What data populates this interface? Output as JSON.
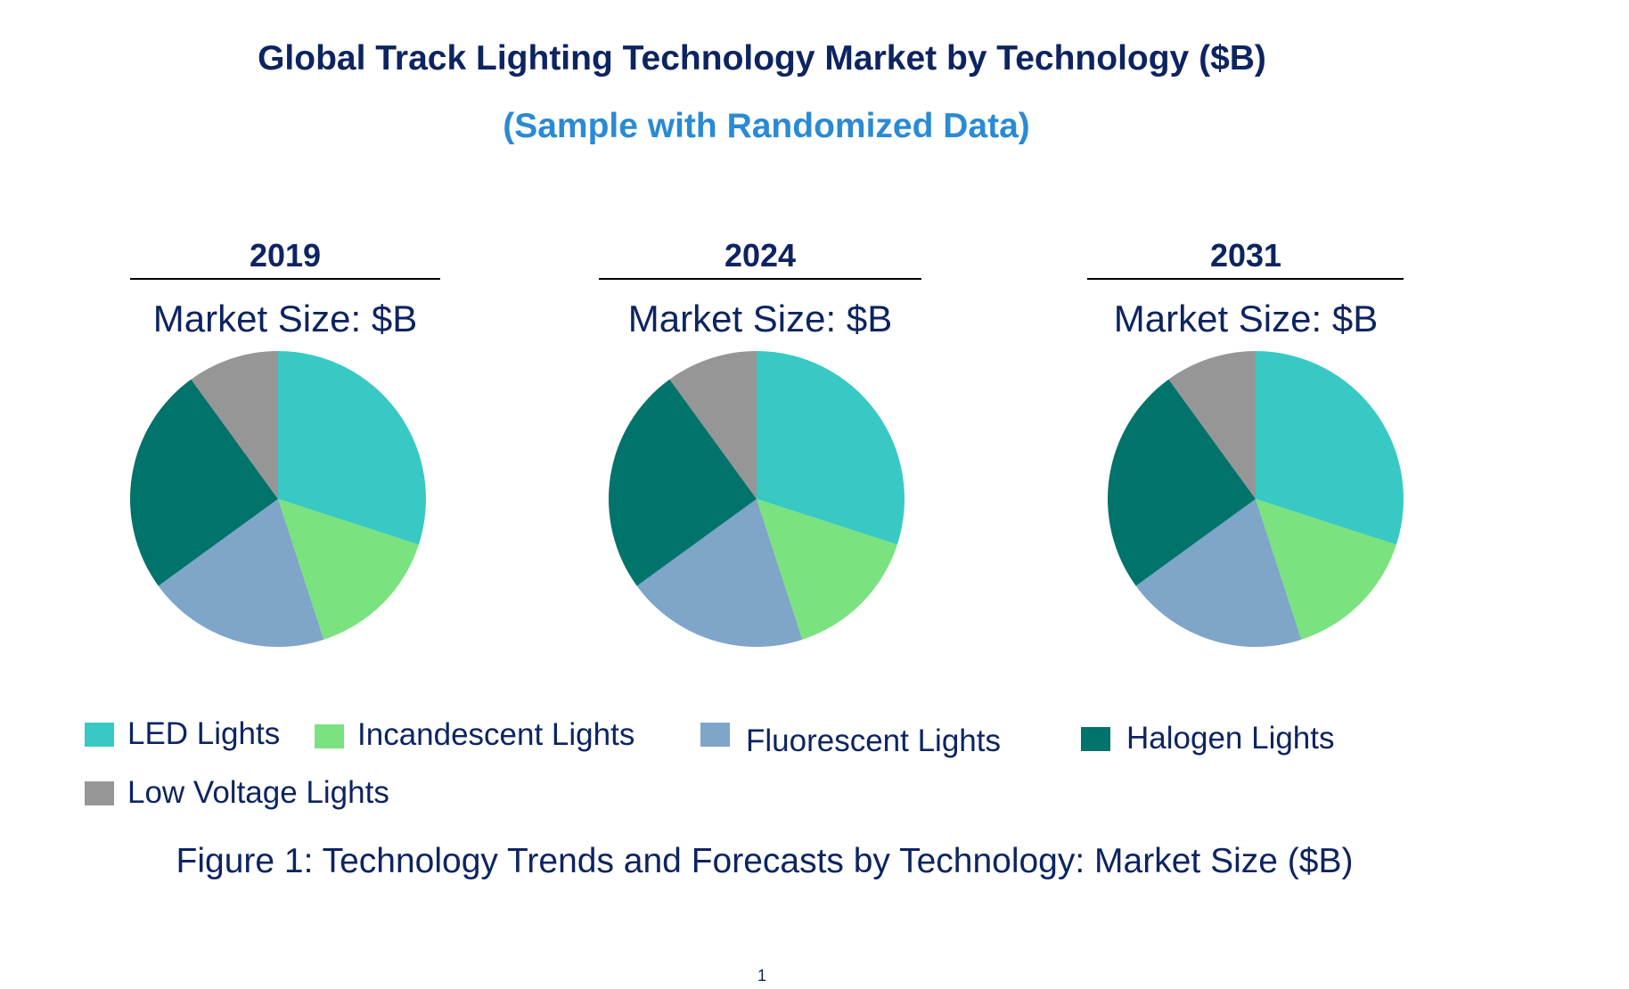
{
  "header": {
    "title": "Global Track Lighting Technology Market by Technology ($B)",
    "subtitle": "(Sample with Randomized Data)"
  },
  "colors": {
    "title": "#0d2461",
    "subtitle": "#2a8ad4",
    "text": "#0d2461",
    "divider": "#000000"
  },
  "chart_data": [
    {
      "type": "pie",
      "title": "2019",
      "subtitle": "Market Size: $B",
      "categories": [
        "LED Lights",
        "Incandescent Lights",
        "Fluorescent Lights",
        "Halogen Lights",
        "Low Voltage Lights"
      ],
      "values": [
        30,
        15,
        20,
        25,
        10
      ],
      "colors": [
        "#38c9c4",
        "#7ae27e",
        "#7fa5c9",
        "#00736b",
        "#969696"
      ]
    },
    {
      "type": "pie",
      "title": "2024",
      "subtitle": "Market Size: $B",
      "categories": [
        "LED Lights",
        "Incandescent Lights",
        "Fluorescent Lights",
        "Halogen Lights",
        "Low Voltage Lights"
      ],
      "values": [
        30,
        15,
        20,
        25,
        10
      ],
      "colors": [
        "#38c9c4",
        "#7ae27e",
        "#7fa5c9",
        "#00736b",
        "#969696"
      ]
    },
    {
      "type": "pie",
      "title": "2031",
      "subtitle": "Market Size: $B",
      "categories": [
        "LED Lights",
        "Incandescent Lights",
        "Fluorescent Lights",
        "Halogen Lights",
        "Low Voltage Lights"
      ],
      "values": [
        30,
        15,
        20,
        25,
        10
      ],
      "colors": [
        "#38c9c4",
        "#7ae27e",
        "#7fa5c9",
        "#00736b",
        "#969696"
      ]
    }
  ],
  "legend": {
    "items": [
      {
        "label": "LED Lights",
        "color": "#38c9c4"
      },
      {
        "label": "Incandescent Lights",
        "color": "#7ae27e"
      },
      {
        "label": "Fluorescent Lights",
        "color": "#7fa5c9"
      },
      {
        "label": "Halogen Lights",
        "color": "#00736b"
      },
      {
        "label": "Low Voltage Lights",
        "color": "#969696"
      }
    ]
  },
  "caption": "Figure 1: Technology Trends and Forecasts by Technology: Market Size ($B)",
  "page_number": "1"
}
